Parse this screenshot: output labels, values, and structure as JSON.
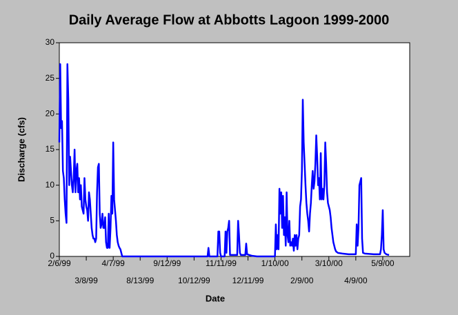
{
  "chart_data": {
    "type": "line",
    "title": "Daily Average Flow at Abbotts Lagoon 1999-2000",
    "xlabel": "Date",
    "ylabel": "Discharge (cfs)",
    "xlim": [
      0,
      390
    ],
    "ylim": [
      0,
      30
    ],
    "xticks": [
      {
        "value": 0,
        "label": "2/6/99"
      },
      {
        "value": 30,
        "label": "3/8/99"
      },
      {
        "value": 60,
        "label": "4/7/99"
      },
      {
        "value": 90,
        "label": "8/13/99"
      },
      {
        "value": 120,
        "label": "9/12/99"
      },
      {
        "value": 150,
        "label": "10/12/99"
      },
      {
        "value": 180,
        "label": "11/11/99"
      },
      {
        "value": 210,
        "label": "12/11/99"
      },
      {
        "value": 240,
        "label": "1/10/00"
      },
      {
        "value": 270,
        "label": "2/9/00"
      },
      {
        "value": 300,
        "label": "3/10/00"
      },
      {
        "value": 330,
        "label": "4/9/00"
      },
      {
        "value": 360,
        "label": "5/9/00"
      }
    ],
    "yticks": [
      0,
      5,
      10,
      15,
      20,
      25,
      30
    ],
    "series": [
      {
        "color": "#0000ff",
        "x": [
          0,
          1,
          2,
          3,
          4,
          5,
          6,
          7,
          8,
          9,
          10,
          11,
          12,
          13,
          14,
          15,
          16,
          17,
          18,
          19,
          20,
          21,
          22,
          23,
          24,
          25,
          26,
          27,
          28,
          29,
          30,
          31,
          32,
          33,
          34,
          35,
          36,
          37,
          38,
          39,
          40,
          41,
          42,
          43,
          44,
          45,
          46,
          47,
          48,
          49,
          50,
          51,
          52,
          53,
          54,
          55,
          56,
          57,
          58,
          59,
          60,
          61,
          62,
          63,
          64,
          65,
          66,
          67,
          68,
          69,
          70,
          165,
          166,
          167,
          176,
          177,
          178,
          179,
          180,
          184,
          185,
          186,
          187,
          188,
          189,
          190,
          198,
          199,
          200,
          201,
          202,
          207,
          208,
          209,
          214,
          220,
          240,
          241,
          242,
          243,
          244,
          245,
          246,
          247,
          248,
          249,
          250,
          251,
          252,
          253,
          254,
          255,
          256,
          257,
          258,
          259,
          260,
          261,
          262,
          263,
          264,
          265,
          266,
          267,
          268,
          269,
          270,
          271,
          272,
          273,
          274,
          275,
          276,
          277,
          278,
          279,
          280,
          281,
          282,
          283,
          284,
          285,
          286,
          287,
          288,
          289,
          290,
          291,
          292,
          293,
          294,
          295,
          296,
          297,
          298,
          299,
          300,
          301,
          302,
          303,
          304,
          305,
          306,
          307,
          308,
          310,
          315,
          322,
          330,
          331,
          332,
          333,
          334,
          335,
          336,
          337,
          338,
          340,
          350,
          357,
          358,
          359,
          360,
          361,
          362,
          364,
          367
        ],
        "values": [
          16,
          27,
          18,
          19,
          12,
          11,
          8,
          6,
          4.7,
          27,
          22,
          10,
          14,
          12,
          10,
          9,
          11,
          15,
          9,
          12,
          13,
          9,
          11,
          8,
          10,
          7,
          6.5,
          6,
          11,
          8,
          7,
          6.5,
          5,
          9,
          8,
          6,
          4,
          3,
          2.5,
          2.5,
          2,
          2.5,
          9,
          12.5,
          13,
          6,
          4,
          4.5,
          6,
          4,
          4,
          5.5,
          2,
          1.2,
          1.2,
          6,
          1.2,
          4,
          8.5,
          6,
          16,
          8,
          6.5,
          5,
          3,
          2,
          1.5,
          1.2,
          1,
          0.5,
          0,
          0,
          1.2,
          0,
          0,
          3.5,
          3.5,
          0.5,
          0,
          0,
          3.5,
          0.5,
          3.5,
          4,
          5,
          0.2,
          0.2,
          5,
          3,
          0.5,
          0.2,
          0.2,
          1.8,
          0.3,
          0.1,
          0,
          0,
          4.5,
          1,
          3,
          1,
          9.5,
          6,
          9,
          4,
          8.5,
          3,
          5.5,
          1.5,
          9,
          3,
          2,
          5,
          1.5,
          2,
          1.5,
          2.5,
          0.8,
          3,
          1.5,
          3,
          1,
          2.5,
          3,
          7,
          8,
          12,
          22,
          16,
          13,
          10,
          7.5,
          6,
          5,
          3.5,
          6,
          7.5,
          10,
          12,
          9.5,
          10.5,
          13,
          17,
          14,
          10,
          11,
          8,
          14.5,
          8,
          9.5,
          8,
          10,
          16,
          13,
          9,
          7.5,
          7,
          6.5,
          5.5,
          4,
          3,
          2,
          1.5,
          1,
          0.7,
          0.5,
          0.4,
          0.3,
          0.3,
          4.5,
          1.5,
          4,
          10,
          10.5,
          11,
          2.5,
          0.5,
          0.4,
          0.3,
          0.3,
          1,
          3,
          6.5,
          1,
          0.5,
          0.3,
          0.2
        ]
      }
    ]
  }
}
